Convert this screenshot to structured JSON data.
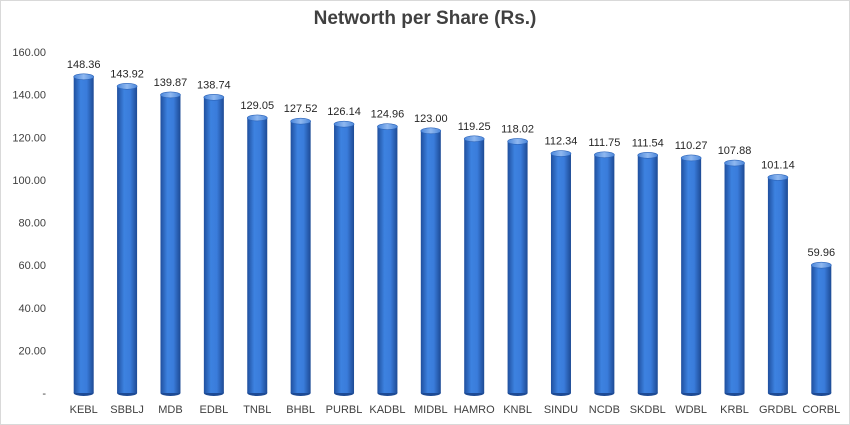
{
  "chart_data": {
    "type": "bar",
    "title": "Networth per Share (Rs.)",
    "xlabel": "",
    "ylabel": "",
    "categories": [
      "KEBL",
      "SBBLJ",
      "MDB",
      "EDBL",
      "TNBL",
      "BHBL",
      "PURBL",
      "KADBL",
      "MIDBL",
      "HAMRO",
      "KNBL",
      "SINDU",
      "NCDB",
      "SKDBL",
      "WDBL",
      "KRBL",
      "GRDBL",
      "CORBL"
    ],
    "values": [
      148.36,
      143.92,
      139.87,
      138.74,
      129.05,
      127.52,
      126.14,
      124.96,
      123.0,
      119.25,
      118.02,
      112.34,
      111.75,
      111.54,
      110.27,
      107.88,
      101.14,
      59.96
    ],
    "data_labels": [
      "148.36",
      "143.92",
      "139.87",
      "138.74",
      "129.05",
      "127.52",
      "126.14",
      "124.96",
      "123.00",
      "119.25",
      "118.02",
      "112.34",
      "111.75",
      "111.54",
      "110.27",
      "107.88",
      "101.14",
      "59.96"
    ],
    "yticks": [
      0,
      20,
      40,
      60,
      80,
      100,
      120,
      140,
      160
    ],
    "ytick_labels": [
      "-",
      "20.00",
      "40.00",
      "60.00",
      "80.00",
      "100.00",
      "120.00",
      "140.00",
      "160.00"
    ],
    "ylim": [
      0,
      160
    ],
    "grid": false,
    "legend": "none",
    "bar_color": "#2e6fd1"
  }
}
